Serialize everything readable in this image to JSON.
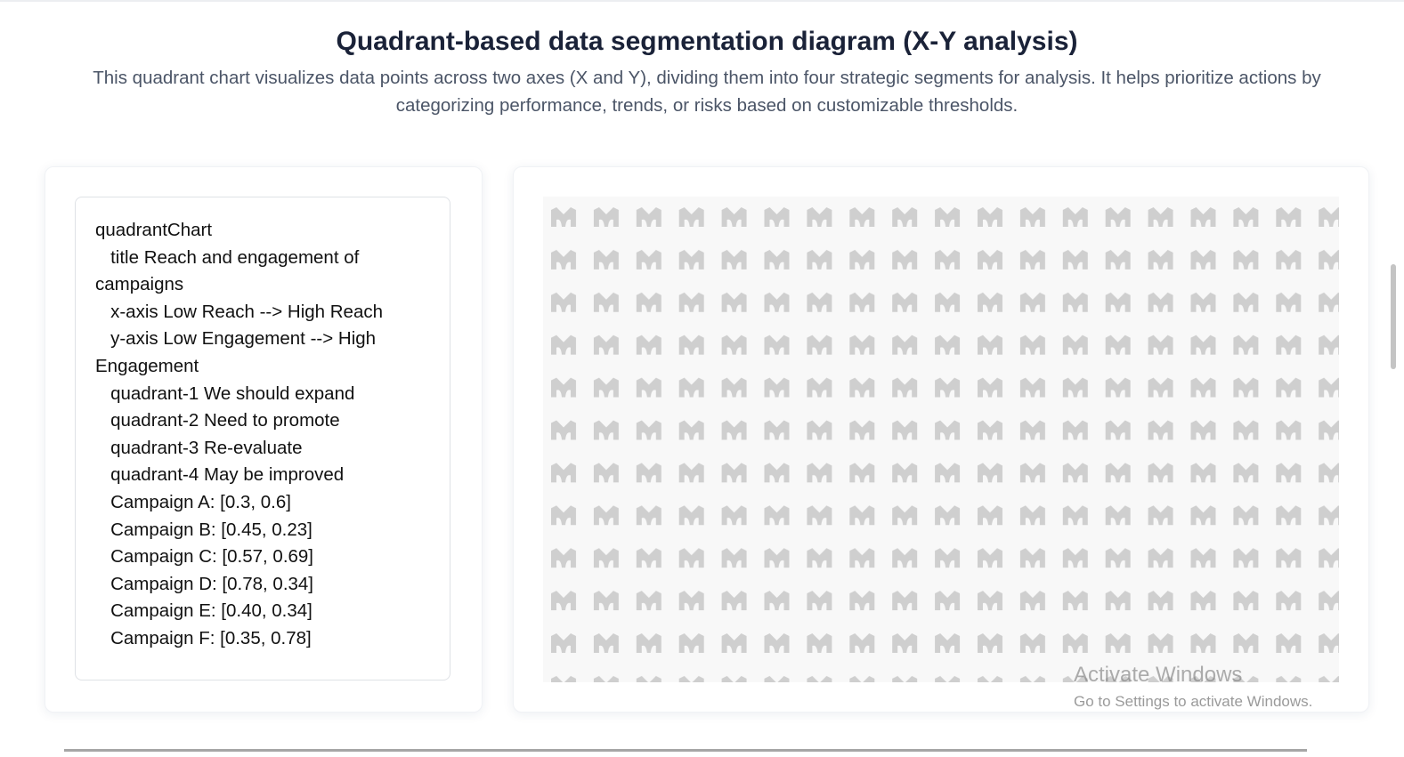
{
  "header": {
    "title": "Quadrant-based data segmentation diagram (X-Y analysis)",
    "description": "This quadrant chart visualizes data points across two axes (X and Y), dividing them into four strategic segments for analysis. It helps prioritize actions by categorizing performance, trends, or risks based on customizable thresholds."
  },
  "editor": {
    "code": "quadrantChart\n   title Reach and engagement of campaigns\n   x-axis Low Reach --> High Reach\n   y-axis Low Engagement --> High Engagement\n   quadrant-1 We should expand\n   quadrant-2 Need to promote\n   quadrant-3 Re-evaluate\n   quadrant-4 May be improved\n   Campaign A: [0.3, 0.6]\n   Campaign B: [0.45, 0.23]\n   Campaign C: [0.57, 0.69]\n   Campaign D: [0.78, 0.34]\n   Campaign E: [0.40, 0.34]\n   Campaign F: [0.35, 0.78]"
  },
  "preview": {
    "placeholder_icon": "logo-pattern-icon",
    "pattern_color": "#cfcfcf",
    "background": "#f8f8f8"
  },
  "watermark": {
    "title": "Activate Windows",
    "subtitle": "Go to Settings to activate Windows."
  }
}
